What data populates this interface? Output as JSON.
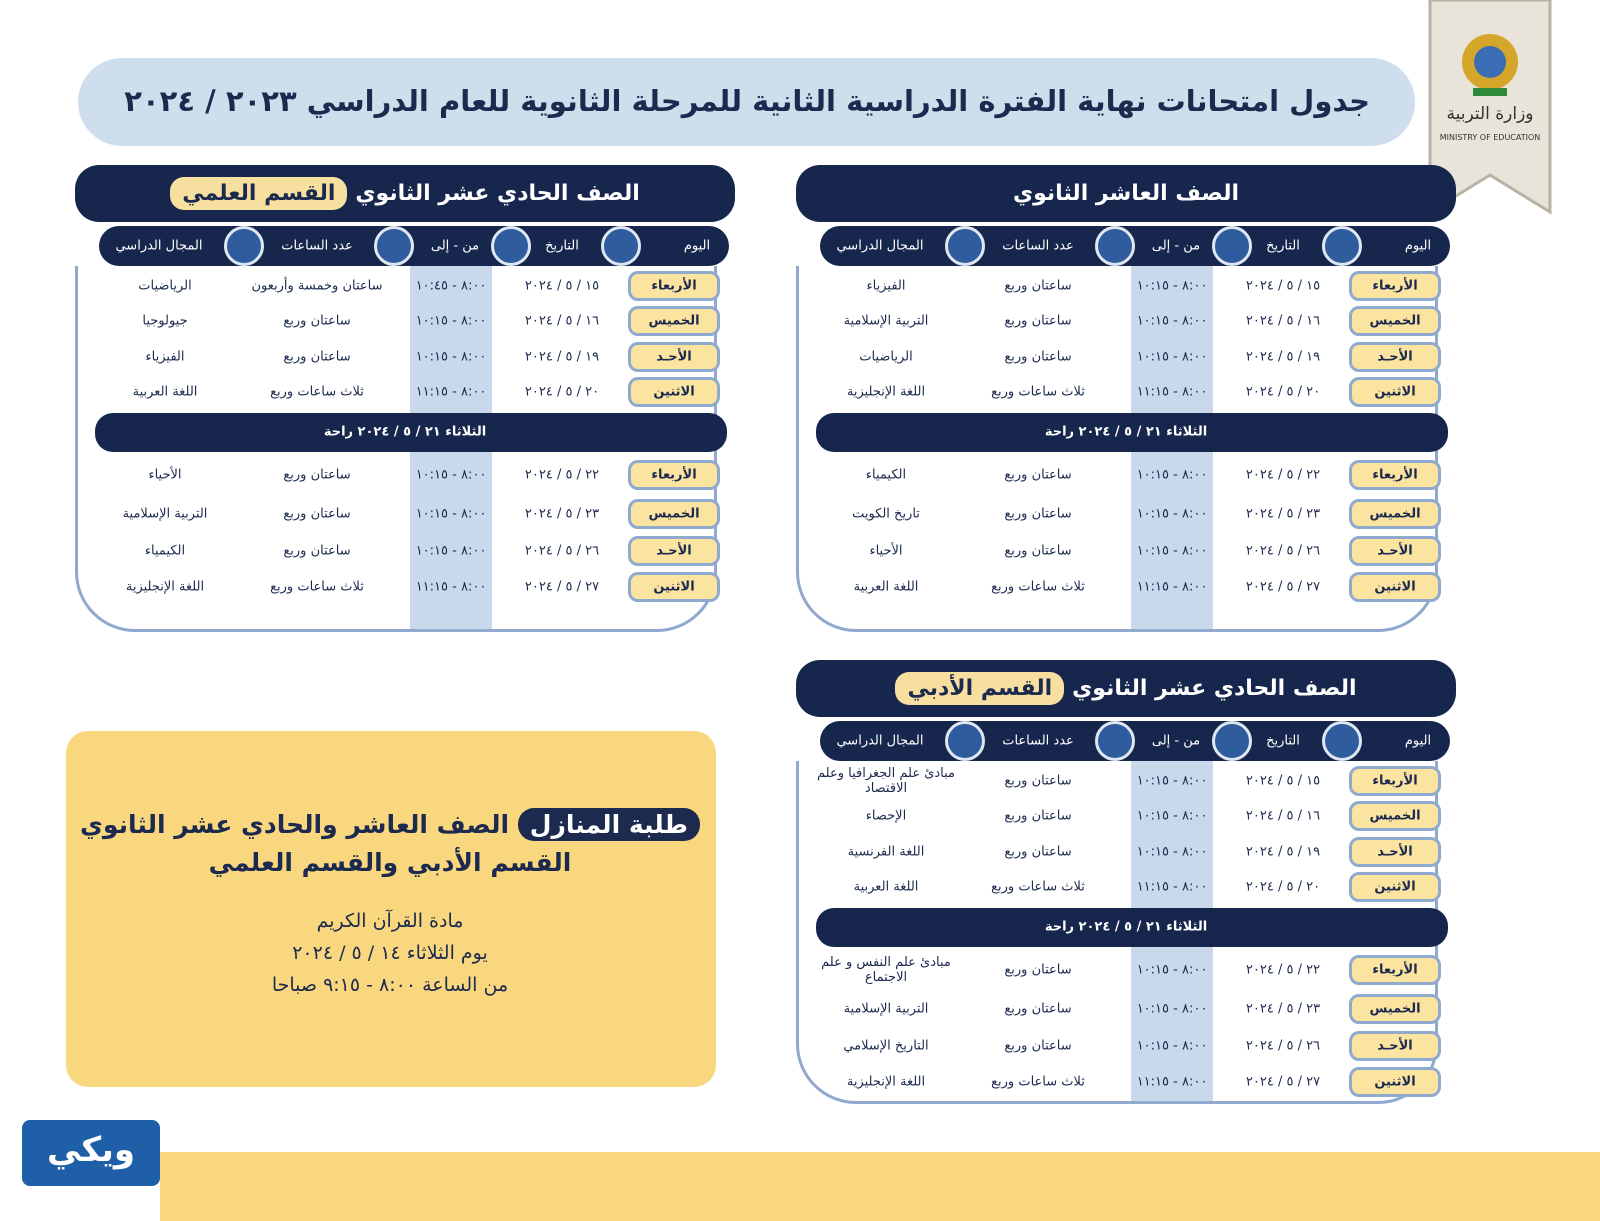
{
  "header": {
    "title": "جدول امتحانات نهاية الفترة الدراسية الثانية للمرحلة الثانوية للعام الدراسي ٢٠٢٣ / ٢٠٢٤"
  },
  "logo": {
    "name": "وزارة التربية",
    "english": "MINISTRY OF EDUCATION"
  },
  "tables": [
    {
      "title": "الصف العاشر الثانوي",
      "columns": [
        "اليوم",
        "التاريخ",
        "من - إلى",
        "عدد الساعات",
        "المجال الدراسي"
      ],
      "week1": [
        [
          "الأربعاء",
          "١٥ / ٥ / ٢٠٢٤",
          "٨:٠٠ - ١٠:١٥",
          "ساعتان وربع",
          "الفيزياء"
        ],
        [
          "الخميس",
          "١٦ / ٥ / ٢٠٢٤",
          "٨:٠٠ - ١٠:١٥",
          "ساعتان وربع",
          "التربية الإسلامية"
        ],
        [
          "الأحـد",
          "١٩ / ٥ / ٢٠٢٤",
          "٨:٠٠ - ١٠:١٥",
          "ساعتان وربع",
          "الرياضيات"
        ],
        [
          "الاثنين",
          "٢٠ / ٥ / ٢٠٢٤",
          "٨:٠٠ - ١١:١٥",
          "ثلاث ساعات وربع",
          "اللغة الإنجليزية"
        ]
      ],
      "break": "الثلاثاء ٢١ / ٥ / ٢٠٢٤ راحة",
      "week2": [
        [
          "الأربعاء",
          "٢٢ / ٥ / ٢٠٢٤",
          "٨:٠٠ - ١٠:١٥",
          "ساعتان وربع",
          "الكيمياء"
        ],
        [
          "الخميس",
          "٢٣ / ٥ / ٢٠٢٤",
          "٨:٠٠ - ١٠:١٥",
          "ساعتان وربع",
          "تاريخ الكويت"
        ],
        [
          "الأحـد",
          "٢٦ / ٥ / ٢٠٢٤",
          "٨:٠٠ - ١٠:١٥",
          "ساعتان وربع",
          "الأحياء"
        ],
        [
          "الاثنين",
          "٢٧ / ٥ / ٢٠٢٤",
          "٨:٠٠ - ١١:١٥",
          "ثلاث ساعات وربع",
          "اللغة العربية"
        ]
      ]
    },
    {
      "title": "الصف الحادي عشر الثانوي",
      "highlight": "القسم العلمي",
      "columns": [
        "اليوم",
        "التاريخ",
        "من - إلى",
        "عدد الساعات",
        "المجال الدراسي"
      ],
      "week1": [
        [
          "الأربعاء",
          "١٥ / ٥ / ٢٠٢٤",
          "٨:٠٠ - ١٠:٤٥",
          "ساعتان وخمسة وأربعون",
          "الرياضيات"
        ],
        [
          "الخميس",
          "١٦ / ٥ / ٢٠٢٤",
          "٨:٠٠ - ١٠:١٥",
          "ساعتان وربع",
          "جيولوجيا"
        ],
        [
          "الأحـد",
          "١٩ / ٥ / ٢٠٢٤",
          "٨:٠٠ - ١٠:١٥",
          "ساعتان وربع",
          "الفيزياء"
        ],
        [
          "الاثنين",
          "٢٠ / ٥ / ٢٠٢٤",
          "٨:٠٠ - ١١:١٥",
          "ثلاث ساعات وربع",
          "اللغة العربية"
        ]
      ],
      "break": "الثلاثاء ٢١ / ٥ / ٢٠٢٤ راحة",
      "week2": [
        [
          "الأربعاء",
          "٢٢ / ٥ / ٢٠٢٤",
          "٨:٠٠ - ١٠:١٥",
          "ساعتان وربع",
          "الأحياء"
        ],
        [
          "الخميس",
          "٢٣ / ٥ / ٢٠٢٤",
          "٨:٠٠ - ١٠:١٥",
          "ساعتان وربع",
          "التربية الإسلامية"
        ],
        [
          "الأحـد",
          "٢٦ / ٥ / ٢٠٢٤",
          "٨:٠٠ - ١٠:١٥",
          "ساعتان وربع",
          "الكيمياء"
        ],
        [
          "الاثنين",
          "٢٧ / ٥ / ٢٠٢٤",
          "٨:٠٠ - ١١:١٥",
          "ثلاث ساعات وربع",
          "اللغة الإنجليزية"
        ]
      ]
    },
    {
      "title": "الصف الحادي عشر الثانوي",
      "highlight": "القسم الأدبي",
      "columns": [
        "اليوم",
        "التاريخ",
        "من - إلى",
        "عدد الساعات",
        "المجال الدراسي"
      ],
      "week1": [
        [
          "الأربعاء",
          "١٥ / ٥ / ٢٠٢٤",
          "٨:٠٠ - ١٠:١٥",
          "ساعتان وربع",
          "مبادئ علم الجغرافيا وعلم الاقتصاد"
        ],
        [
          "الخميس",
          "١٦ / ٥ / ٢٠٢٤",
          "٨:٠٠ - ١٠:١٥",
          "ساعتان وربع",
          "الإحصاء"
        ],
        [
          "الأحـد",
          "١٩ / ٥ / ٢٠٢٤",
          "٨:٠٠ - ١٠:١٥",
          "ساعتان وربع",
          "اللغة الفرنسية"
        ],
        [
          "الاثنين",
          "٢٠ / ٥ / ٢٠٢٤",
          "٨:٠٠ - ١١:١٥",
          "ثلاث ساعات وربع",
          "اللغة العربية"
        ]
      ],
      "break": "الثلاثاء ٢١ / ٥ / ٢٠٢٤ راحة",
      "week2": [
        [
          "الأربعاء",
          "٢٢ / ٥ / ٢٠٢٤",
          "٨:٠٠ - ١٠:١٥",
          "ساعتان وربع",
          "مبادئ علم النفس و علم الاجتماع"
        ],
        [
          "الخميس",
          "٢٣ / ٥ / ٢٠٢٤",
          "٨:٠٠ - ١٠:١٥",
          "ساعتان وربع",
          "التربية الإسلامية"
        ],
        [
          "الأحـد",
          "٢٦ / ٥ / ٢٠٢٤",
          "٨:٠٠ - ١٠:١٥",
          "ساعتان وربع",
          "التاريخ الإسلامي"
        ],
        [
          "الاثنين",
          "٢٧ / ٥ / ٢٠٢٤",
          "٨:٠٠ - ١١:١٥",
          "ثلاث ساعات وربع",
          "اللغة الإنجليزية"
        ]
      ]
    }
  ],
  "note": {
    "highlight": "طلبة المنازل",
    "line1": "الصف العاشر والحادي عشر الثانوي",
    "line2": "القسم الأدبي والقسم العلمي",
    "subject": "مادة القرآن الكريم",
    "day": "يوم الثلاثاء ١٤ / ٥ / ٢٠٢٤",
    "time": "من الساعة ٨:٠٠ - ٩:١٥ صباحا"
  },
  "watermark": "ويكي"
}
